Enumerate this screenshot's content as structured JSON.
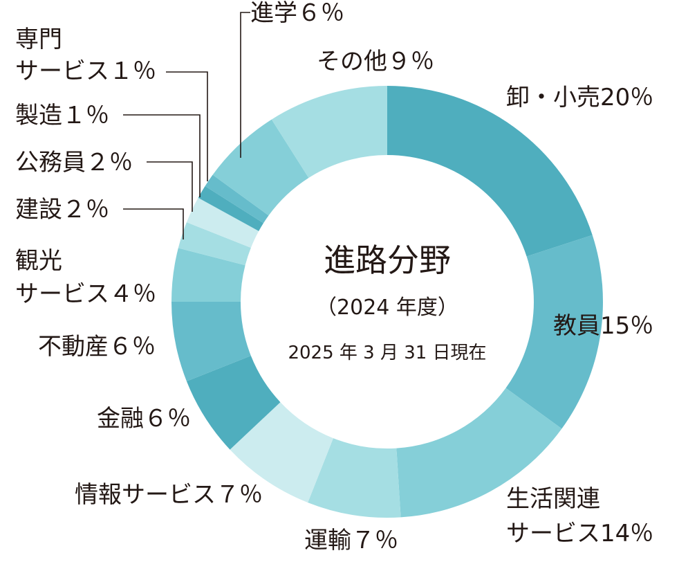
{
  "chart_data": {
    "type": "pie",
    "variant": "donut",
    "title": "進路分野",
    "subtitle": "（2024 年度）",
    "note": "2025 年 3 月 31 日現在",
    "unit": "%",
    "slices": [
      {
        "name": "卸・小売",
        "value": 20,
        "pct_label": "20％",
        "color": "#4faebe"
      },
      {
        "name": "教員",
        "value": 15,
        "pct_label": "15％",
        "color": "#66bccb"
      },
      {
        "name": "生活関連\nサービス",
        "value": 14,
        "pct_label": "14％",
        "color": "#85cfd8"
      },
      {
        "name": "運輸",
        "value": 7,
        "pct_label": "７％",
        "color": "#a5dee3"
      },
      {
        "name": "情報サービス",
        "value": 7,
        "pct_label": "７％",
        "color": "#ccecef"
      },
      {
        "name": "金融",
        "value": 6,
        "pct_label": "６％",
        "color": "#4faebe"
      },
      {
        "name": "不動産",
        "value": 6,
        "pct_label": "６％",
        "color": "#66bccb"
      },
      {
        "name": "観光\nサービス",
        "value": 4,
        "pct_label": "４％",
        "color": "#85cfd8"
      },
      {
        "name": "建設",
        "value": 2,
        "pct_label": "２％",
        "color": "#a5dee3"
      },
      {
        "name": "公務員",
        "value": 2,
        "pct_label": "２％",
        "color": "#ccecef"
      },
      {
        "name": "製造",
        "value": 1,
        "pct_label": "１％",
        "color": "#4faebe"
      },
      {
        "name": "専門\nサービス",
        "value": 1,
        "pct_label": "１％",
        "color": "#66bccb"
      },
      {
        "name": "進学",
        "value": 6,
        "pct_label": "６％",
        "color": "#85cfd8"
      },
      {
        "name": "その他",
        "value": 9,
        "pct_label": "９％",
        "color": "#a5dee3"
      }
    ]
  }
}
